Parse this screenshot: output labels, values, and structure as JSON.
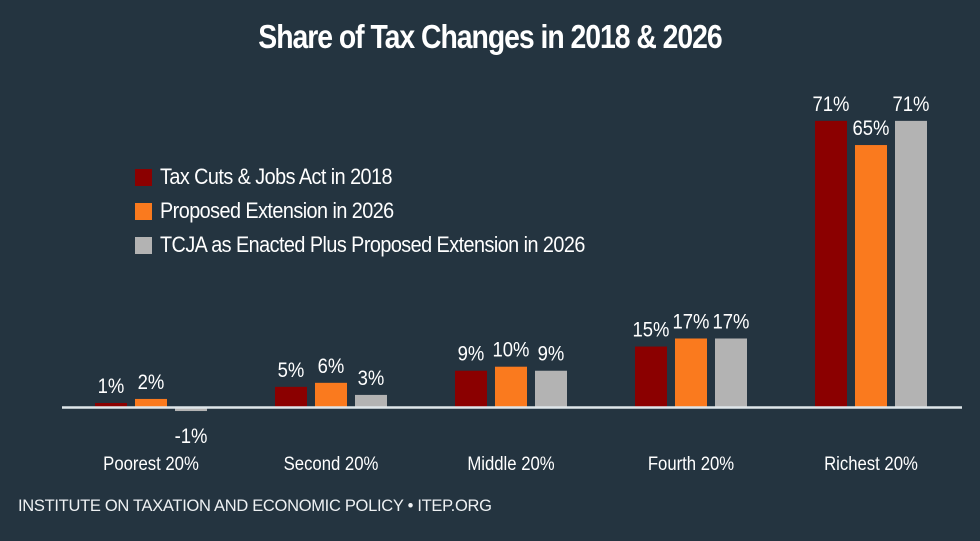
{
  "chart_data": {
    "type": "bar",
    "title": "Share of Tax Changes in 2018 & 2026",
    "xlabel": "",
    "ylabel": "",
    "categories": [
      "Poorest 20%",
      "Second 20%",
      "Middle 20%",
      "Fourth 20%",
      "Richest 20%"
    ],
    "series": [
      {
        "name": "Tax Cuts & Jobs Act in 2018",
        "color": "#8b0000",
        "values": [
          1,
          5,
          9,
          15,
          71
        ],
        "labels": [
          "1%",
          "5%",
          "9%",
          "15%",
          "71%"
        ]
      },
      {
        "name": "Proposed Extension in 2026",
        "color": "#fa7a1e",
        "values": [
          2,
          6,
          10,
          17,
          65
        ],
        "labels": [
          "2%",
          "6%",
          "10%",
          "17%",
          "65%"
        ]
      },
      {
        "name": "TCJA as Enacted Plus Proposed Extension in 2026",
        "color": "#b3b3b3",
        "values": [
          -1,
          3,
          9,
          17,
          71
        ],
        "labels": [
          "-1%",
          "3%",
          "9%",
          "17%",
          "71%"
        ]
      }
    ],
    "ylim": [
      -1,
      71
    ],
    "grid": false,
    "legend_position": "upper-left",
    "axis_line_color": "#dfe6ea"
  },
  "footer": "INSTITUTE ON TAXATION AND ECONOMIC POLICY • ITEP.ORG"
}
